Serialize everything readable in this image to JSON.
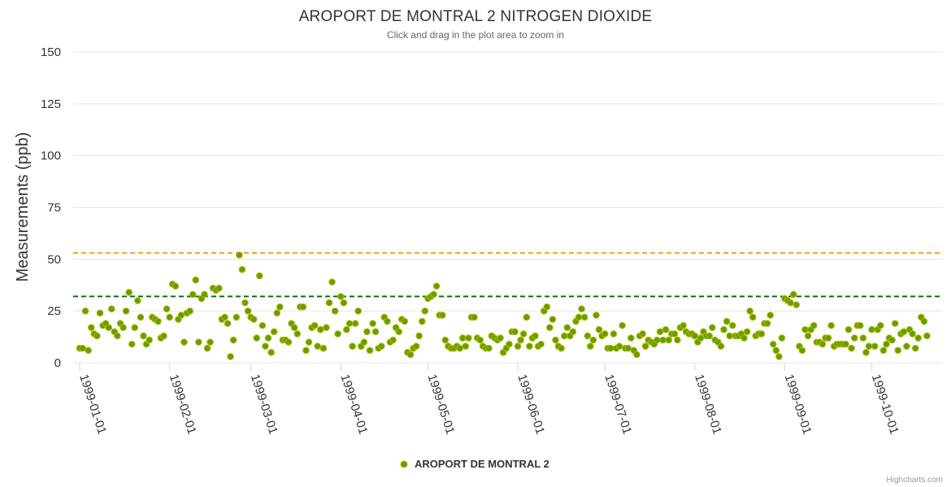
{
  "chart_data": {
    "type": "scatter",
    "title": "AROPORT DE MONTRAL 2 NITROGEN DIOXIDE",
    "subtitle": "Click and drag in the plot area to zoom in",
    "ylabel": "Measurements (ppb)",
    "xlabel": "",
    "ylim": [
      0,
      150
    ],
    "yticks": [
      0,
      25,
      50,
      75,
      100,
      125,
      150
    ],
    "x_start": "1999-01-01",
    "x_end": "1999-10-23",
    "xtick_labels": [
      "1999-01-01",
      "1999-02-01",
      "1999-03-01",
      "1999-04-01",
      "1999-05-01",
      "1999-06-01",
      "1999-07-01",
      "1999-08-01",
      "1999-09-01",
      "1999-10-01"
    ],
    "xtick_days": [
      0,
      31,
      59,
      90,
      120,
      151,
      181,
      212,
      243,
      273
    ],
    "legend": {
      "position": "bottom-center",
      "label": "AROPORT DE MONTRAL 2"
    },
    "reference_lines": [
      {
        "name": "upper-threshold",
        "value": 53,
        "color": "#f0a000",
        "dash": "6,4"
      },
      {
        "name": "lower-threshold",
        "value": 32,
        "color": "#007a00",
        "dash": "6,4"
      }
    ],
    "series": [
      {
        "name": "AROPORT DE MONTRAL 2",
        "marker_fill": "#5aa400",
        "marker_stroke": "#c9b000",
        "start_day": 0,
        "values": [
          7,
          7,
          25,
          6,
          17,
          14,
          13,
          24,
          18,
          19,
          17,
          26,
          15,
          13,
          19,
          17,
          25,
          34,
          9,
          17,
          30,
          22,
          13,
          9,
          11,
          22,
          21,
          20,
          12,
          13,
          26,
          22,
          38,
          37,
          21,
          23,
          10,
          24,
          25,
          33,
          40,
          10,
          31,
          33,
          7,
          10,
          36,
          35,
          36,
          21,
          22,
          19,
          3,
          11,
          22,
          52,
          45,
          29,
          25,
          22,
          21,
          12,
          42,
          18,
          8,
          12,
          5,
          15,
          24,
          27,
          11,
          11,
          10,
          19,
          17,
          14,
          27,
          27,
          6,
          10,
          17,
          18,
          8,
          16,
          7,
          17,
          29,
          39,
          25,
          14,
          32,
          29,
          16,
          19,
          8,
          19,
          25,
          8,
          10,
          15,
          6,
          19,
          15,
          7,
          8,
          22,
          20,
          10,
          11,
          17,
          15,
          21,
          20,
          5,
          4,
          7,
          8,
          13,
          20,
          25,
          31,
          32,
          33,
          37,
          23,
          23,
          11,
          8,
          7,
          7,
          8,
          7,
          12,
          8,
          12,
          22,
          22,
          12,
          11,
          8,
          7,
          7,
          13,
          12,
          11,
          12,
          5,
          7,
          9,
          15,
          15,
          8,
          11,
          14,
          22,
          8,
          12,
          13,
          8,
          9,
          25,
          27,
          17,
          21,
          11,
          8,
          7,
          13,
          17,
          13,
          15,
          20,
          22,
          26,
          22,
          13,
          8,
          11,
          23,
          16,
          13,
          14,
          7,
          7,
          14,
          7,
          8,
          18,
          7,
          7,
          12,
          6,
          4,
          13,
          14,
          8,
          11,
          10,
          9,
          11,
          15,
          11,
          16,
          11,
          14,
          14,
          11,
          17,
          18,
          15,
          14,
          14,
          13,
          10,
          12,
          15,
          13,
          13,
          17,
          11,
          10,
          8,
          16,
          20,
          13,
          18,
          13,
          13,
          14,
          12,
          15,
          25,
          22,
          13,
          14,
          14,
          19,
          19,
          23,
          9,
          6,
          3,
          12,
          31,
          30,
          29,
          33,
          28,
          8,
          6,
          16,
          13,
          16,
          18,
          10,
          10,
          9,
          12,
          12,
          18,
          8,
          9,
          9,
          9,
          9,
          16,
          7,
          12,
          18,
          18,
          12,
          5,
          8,
          16,
          8,
          16,
          18,
          6,
          9,
          12,
          11,
          19,
          6,
          14,
          15,
          8,
          16,
          14,
          7,
          12,
          22,
          20,
          13
        ]
      }
    ]
  },
  "credits": "Highcharts.com"
}
